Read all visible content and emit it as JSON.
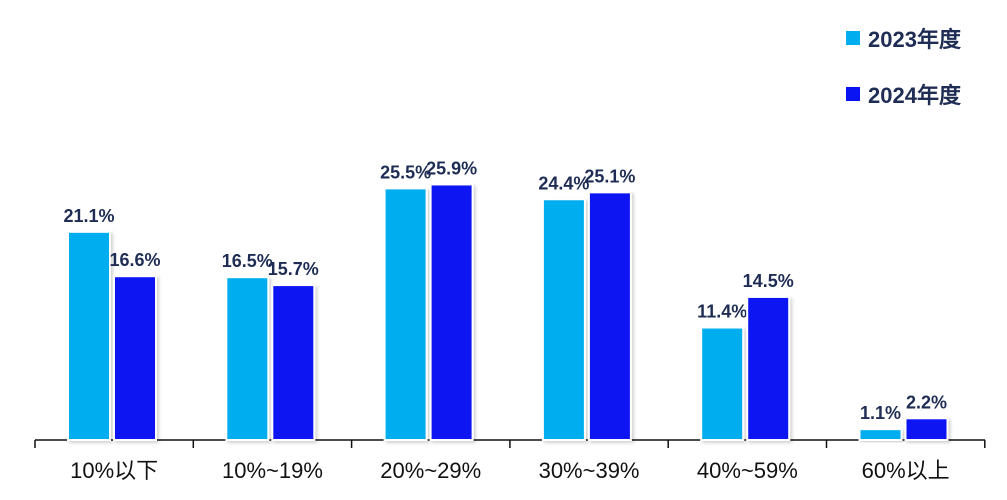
{
  "chart_data": {
    "type": "bar",
    "categories": [
      "10%以下",
      "10%~19%",
      "20%~29%",
      "30%~39%",
      "40%~59%",
      "60%以上"
    ],
    "series": [
      {
        "name": "2023年度",
        "color": "#00AEEF",
        "values": [
          21.1,
          16.5,
          25.5,
          24.4,
          11.4,
          1.1
        ],
        "labels": [
          "21.1%",
          "16.5%",
          "25.5%",
          "24.4%",
          "11.4%",
          "1.1%"
        ]
      },
      {
        "name": "2024年度",
        "color": "#0A14F2",
        "values": [
          16.6,
          15.7,
          25.9,
          25.1,
          14.5,
          2.2
        ],
        "labels": [
          "16.6%",
          "15.7%",
          "25.9%",
          "25.1%",
          "14.5%",
          "2.2%"
        ]
      }
    ],
    "ylim": [
      0,
      30
    ],
    "grid": false,
    "legend": "top-right",
    "title": "",
    "xlabel": "",
    "ylabel": ""
  }
}
